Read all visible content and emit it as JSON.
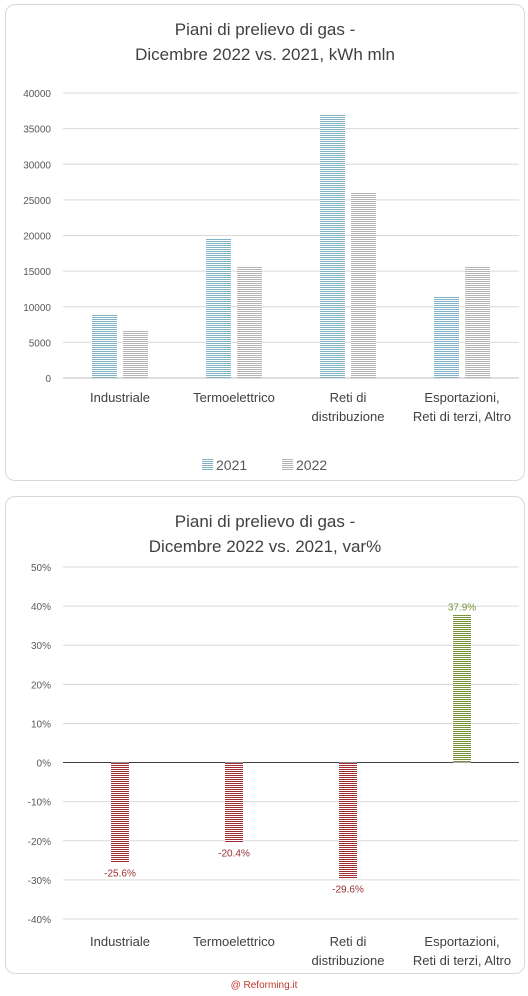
{
  "chart_data": [
    {
      "type": "bar",
      "title_line1": "Piani di prelievo di gas  -",
      "title_line2": "Dicembre 2022 vs. 2021, kWh mln",
      "categories": [
        [
          "Industriale"
        ],
        [
          "Termoelettrico"
        ],
        [
          "Reti di",
          "distribuzione"
        ],
        [
          "Esportazioni,",
          "Reti di terzi, Altro"
        ]
      ],
      "series": [
        {
          "name": "2021",
          "values": [
            8900,
            19600,
            37000,
            11400
          ],
          "color": "#7fb2c4"
        },
        {
          "name": "2022",
          "values": [
            6600,
            15600,
            26000,
            15700
          ],
          "color": "#b5b5b5"
        }
      ],
      "ylim": [
        0,
        40000
      ],
      "yticks": [
        "0",
        "5000",
        "10000",
        "15000",
        "20000",
        "25000",
        "30000",
        "35000",
        "40000"
      ],
      "grid": true,
      "legend": "bottom"
    },
    {
      "type": "bar",
      "title_line1": "Piani di prelievo di gas  -",
      "title_line2": "Dicembre 2022 vs. 2021, var%",
      "categories": [
        [
          "Industriale"
        ],
        [
          "Termoelettrico"
        ],
        [
          "Reti di",
          "distribuzione"
        ],
        [
          "Esportazioni,",
          "Reti di terzi, Altro"
        ]
      ],
      "values": [
        -25.6,
        -20.4,
        -29.6,
        37.9
      ],
      "data_labels": [
        "-25.6%",
        "-20.4%",
        "-29.6%",
        "37.9%"
      ],
      "ylim": [
        -40,
        50
      ],
      "yticks": [
        "-40%",
        "-30%",
        "-20%",
        "-10%",
        "0%",
        "10%",
        "20%",
        "30%",
        "40%",
        "50%"
      ],
      "negative_color": "#9b2d30",
      "positive_color": "#77933c",
      "grid": true,
      "legend": "none"
    }
  ],
  "credit": "@ Reforming.it"
}
